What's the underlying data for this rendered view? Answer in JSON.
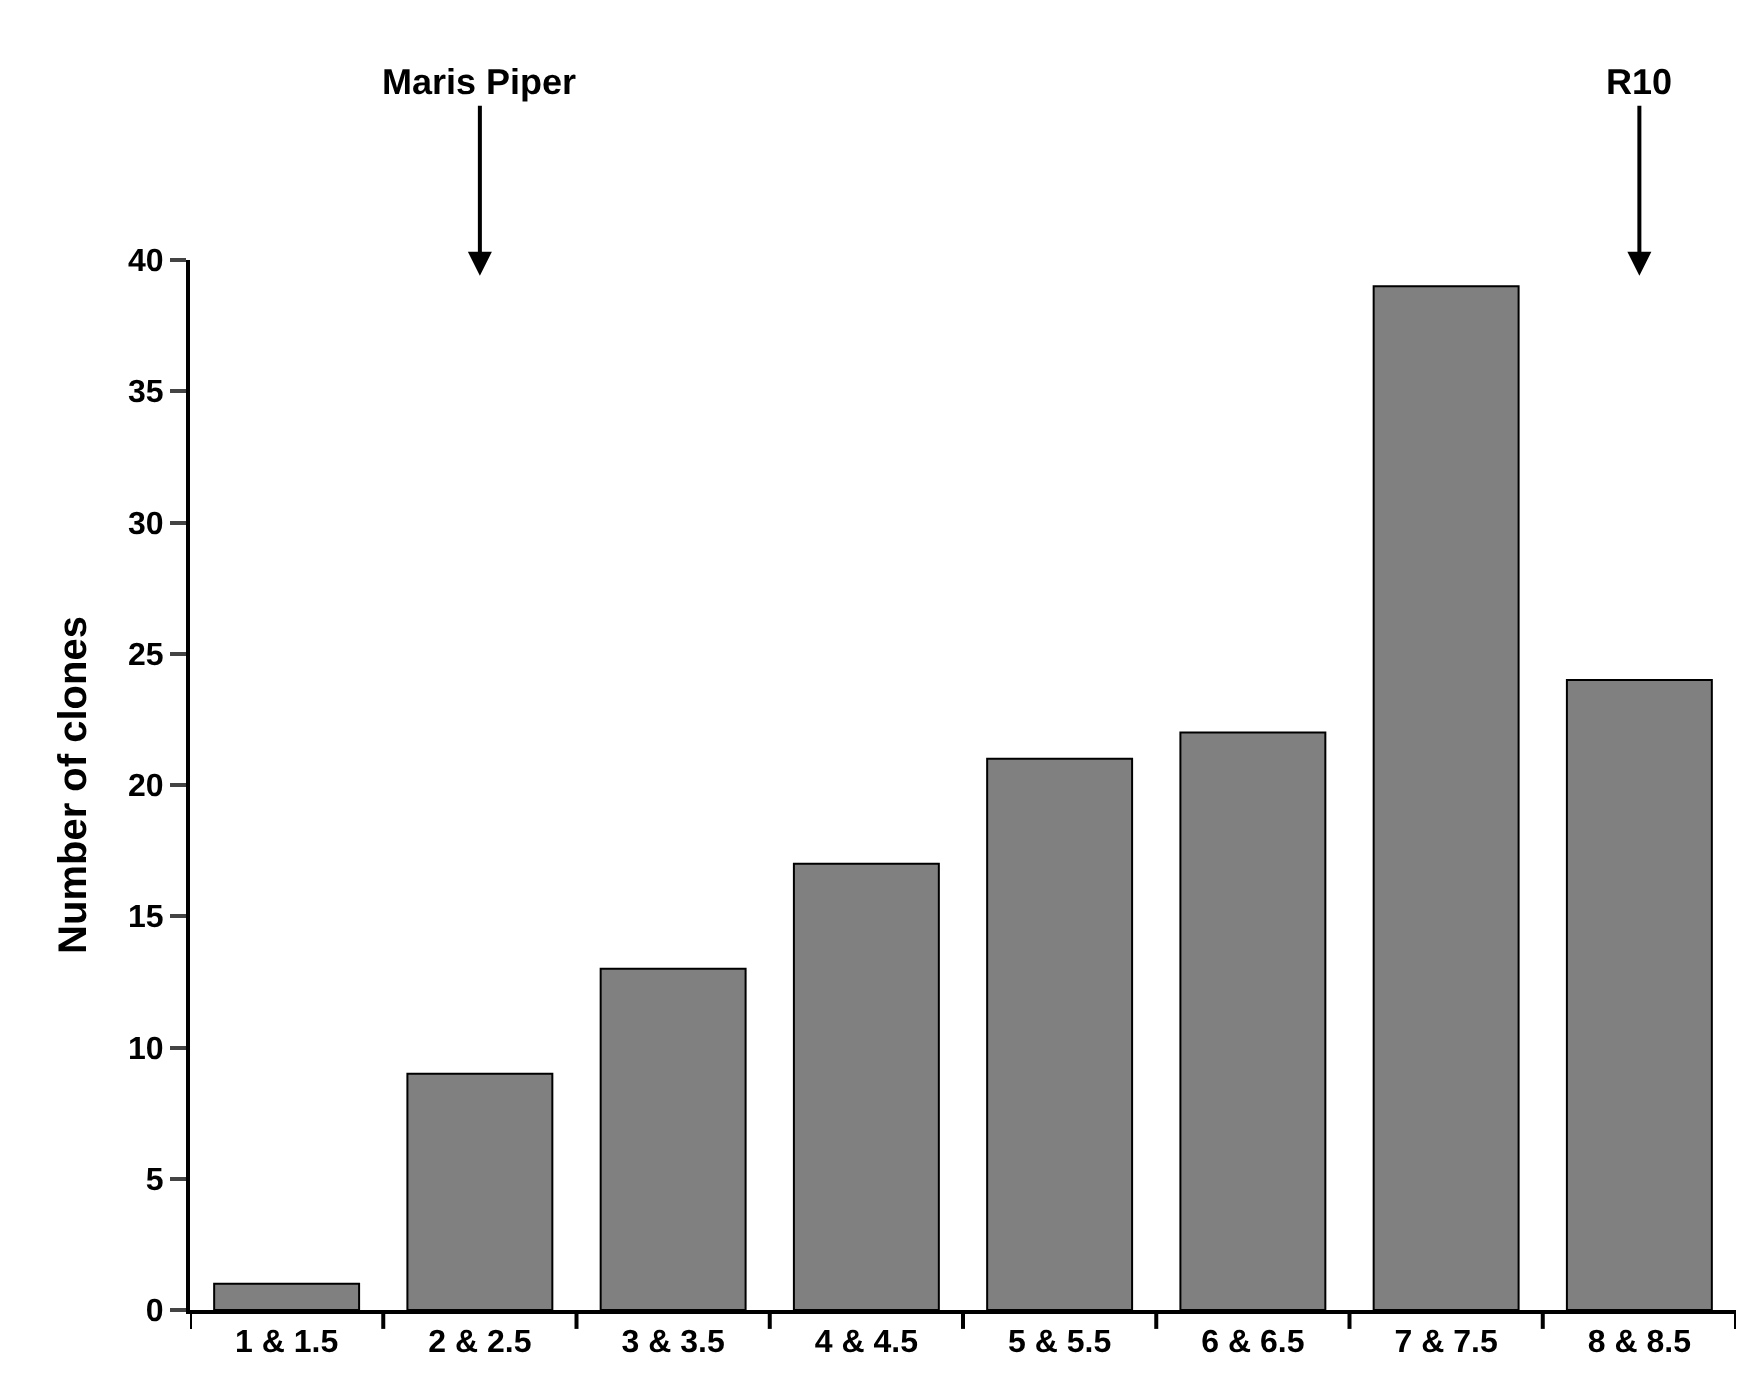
{
  "chart_data": {
    "type": "bar",
    "ylabel": "Number of clones",
    "categories": [
      "1 & 1.5",
      "2 & 2.5",
      "3 & 3.5",
      "4 & 4.5",
      "5 & 5.5",
      "6 & 6.5",
      "7 & 7.5",
      "8 & 8.5"
    ],
    "values": [
      1,
      9,
      13,
      17,
      21,
      22,
      39,
      24
    ],
    "color": "#808080",
    "ylim": [
      0,
      40
    ],
    "yticks": [
      0,
      5,
      10,
      15,
      20,
      25,
      30,
      35,
      40
    ],
    "annotations": [
      "Maris Piper",
      "R10"
    ]
  }
}
